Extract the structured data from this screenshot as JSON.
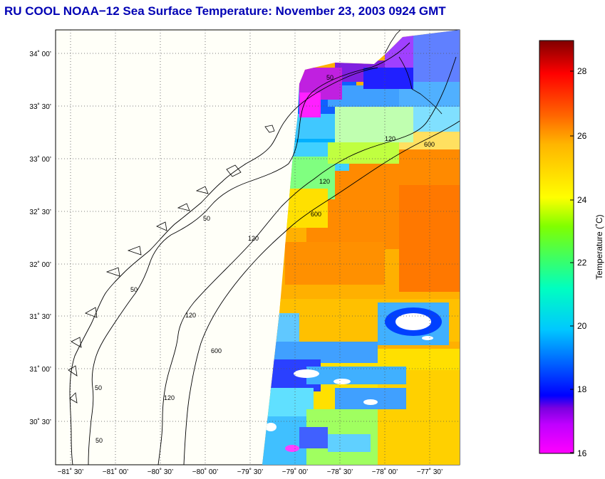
{
  "title": "RU COOL  NOAA−12  Sea Surface Temperature:  November 23, 2003 0924 GMT",
  "map": {
    "lat_ticks": [
      "34˚ 00’",
      "33˚ 30’",
      "33˚ 00’",
      "32˚ 30’",
      "32˚ 00’",
      "31˚ 30’",
      "31˚ 00’",
      "30˚ 30’"
    ],
    "lon_ticks": [
      "−81˚ 30’",
      "−81˚ 00’",
      "−80˚ 30’",
      "−80˚ 00’",
      "−79˚ 30’",
      "−79˚ 00’",
      "−78˚ 30’",
      "−78˚ 00’",
      "−77˚ 30’"
    ],
    "contour_labels": [
      "50",
      "50",
      "50",
      "50",
      "50",
      "120",
      "120",
      "120",
      "120",
      "120",
      "600",
      "600",
      "600"
    ]
  },
  "colorbar": {
    "label": "Temperature (˚C)",
    "ticks": [
      "28",
      "26",
      "24",
      "22",
      "20",
      "18",
      "16"
    ],
    "colors": [
      "#ff00ff",
      "#c000ff",
      "#0000ff",
      "#0064ff",
      "#00c8ff",
      "#00ffc8",
      "#64ff00",
      "#ffff00",
      "#ffb400",
      "#ff6400",
      "#ff0000",
      "#800000"
    ]
  }
}
